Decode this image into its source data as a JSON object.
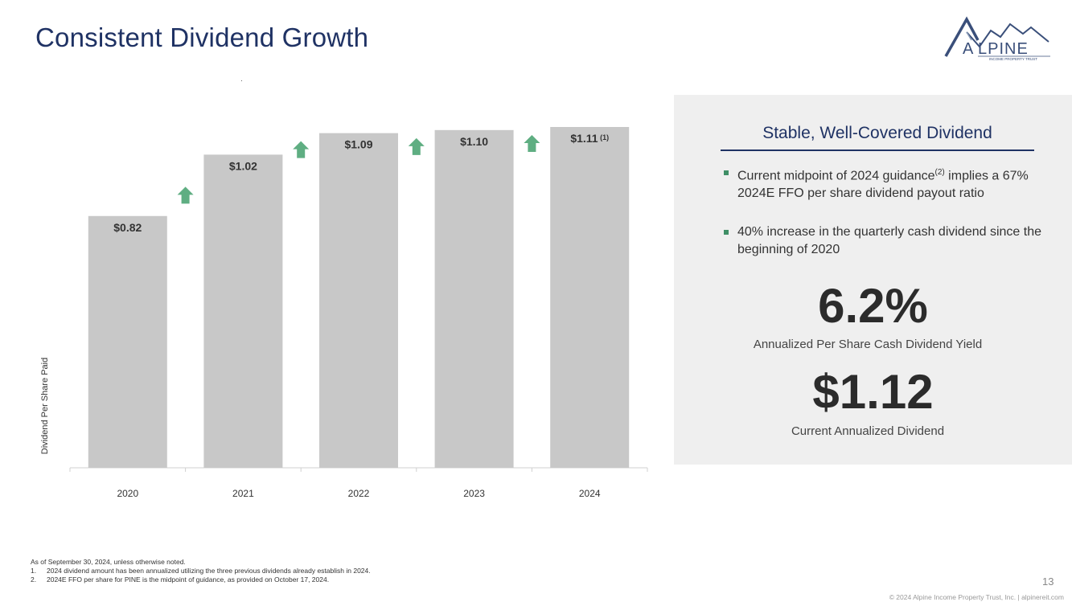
{
  "page": {
    "title": "Consistent Dividend Growth",
    "logo_text": "LPINE",
    "logo_initial": "A",
    "logo_subtext": "INCOME PROPERTY TRUST",
    "page_number": "13",
    "copyright": "© 2024 Alpine Income Property Trust, Inc.  |  alpinereit.com"
  },
  "chart_data": {
    "type": "bar",
    "categories": [
      "2020",
      "2021",
      "2022",
      "2023",
      "2024"
    ],
    "values": [
      0.82,
      1.02,
      1.09,
      1.1,
      1.11
    ],
    "value_labels": [
      "$0.82",
      "$1.02",
      "$1.09",
      "$1.10",
      "$1.11"
    ],
    "value_label_notes": [
      "",
      "",
      "",
      "",
      "(1)"
    ],
    "xlabel": "",
    "ylabel": "Dividend Per Share Paid",
    "ylim": [
      0,
      1.11
    ],
    "grid": false,
    "bar_color": "#c8c8c8",
    "arrow_color": "#5fae82",
    "increase_arrows": [
      "2020-2021",
      "2021-2022",
      "2022-2023",
      "2023-2024"
    ]
  },
  "panel": {
    "heading": "Stable, Well-Covered Dividend",
    "bullets": [
      {
        "text_before": "Current midpoint of 2024 guidance",
        "sup": "(2)",
        "text_after": " implies a 67% 2024E FFO per share dividend payout ratio"
      },
      {
        "text_before": "40% increase in the quarterly cash dividend since the beginning of 2020",
        "sup": "",
        "text_after": ""
      }
    ],
    "yield_value": "6.2%",
    "yield_label": "Annualized Per Share Cash Dividend Yield",
    "dividend_value": "$1.12",
    "dividend_label": "Current Annualized Dividend"
  },
  "footnotes": {
    "intro": "As of September 30, 2024, unless otherwise noted.",
    "items": [
      {
        "num": "1.",
        "text": "2024 dividend amount has been annualized utilizing the three previous dividends already establish in 2024."
      },
      {
        "num": "2.",
        "text": "2024E FFO per share for PINE is the midpoint of guidance, as provided on October 17, 2024."
      }
    ]
  },
  "colors": {
    "title": "#1f3264",
    "panel_bg": "#efefef",
    "bullet": "#3f8f66"
  }
}
